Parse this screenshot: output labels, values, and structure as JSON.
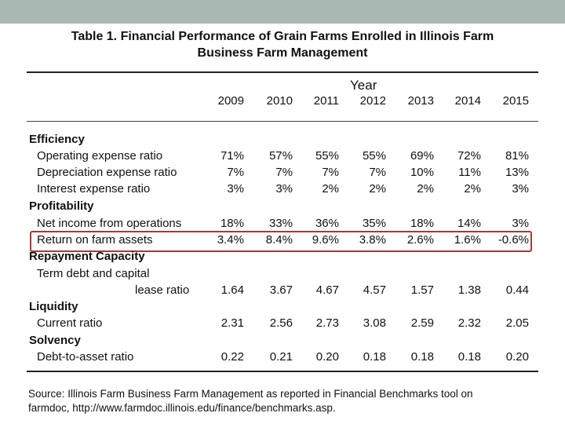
{
  "title": {
    "line1": "Table 1.  Financial Performance of Grain Farms Enrolled in Illinois Farm",
    "line2": "Business Farm Management"
  },
  "header": {
    "year_label": "Year",
    "years": [
      "2009",
      "2010",
      "2011",
      "2012",
      "2013",
      "2014",
      "2015"
    ]
  },
  "sections": {
    "efficiency": "Efficiency",
    "profitability": "Profitability",
    "repayment": "Repayment Capacity",
    "liquidity": "Liquidity",
    "solvency": "Solvency"
  },
  "rows": {
    "operating_expense": {
      "label": "Operating expense ratio",
      "values": [
        "71%",
        "57%",
        "55%",
        "55%",
        "69%",
        "72%",
        "81%"
      ]
    },
    "depreciation_expense": {
      "label": "Depreciation expense ratio",
      "values": [
        "7%",
        "7%",
        "7%",
        "7%",
        "10%",
        "11%",
        "13%"
      ]
    },
    "interest_expense": {
      "label": "Interest expense ratio",
      "values": [
        "3%",
        "3%",
        "2%",
        "2%",
        "2%",
        "2%",
        "3%"
      ]
    },
    "net_income": {
      "label": "Net income from operations",
      "values": [
        "18%",
        "33%",
        "36%",
        "35%",
        "18%",
        "14%",
        "3%"
      ]
    },
    "return_on_assets": {
      "label": "Return on farm assets",
      "values": [
        "3.4%",
        "8.4%",
        "9.6%",
        "3.8%",
        "2.6%",
        "1.6%",
        "-0.6%"
      ]
    },
    "term_debt": {
      "label_line1": "Term debt and capital",
      "label_line2": "lease ratio",
      "values": [
        "1.64",
        "3.67",
        "4.67",
        "4.57",
        "1.57",
        "1.38",
        "0.44"
      ]
    },
    "current_ratio": {
      "label": "Current ratio",
      "values": [
        "2.31",
        "2.56",
        "2.73",
        "3.08",
        "2.59",
        "2.32",
        "2.05"
      ]
    },
    "debt_to_asset": {
      "label": "Debt-to-asset ratio",
      "values": [
        "0.22",
        "0.21",
        "0.20",
        "0.18",
        "0.18",
        "0.18",
        "0.20"
      ]
    }
  },
  "source": {
    "line1": "Source:  Illinois Farm Business Farm Management as reported in Financial Benchmarks tool on",
    "line2": "farmdoc, http://www.farmdoc.illinois.edu/finance/benchmarks.asp."
  },
  "colors": {
    "top_bar": "#a9b8b2",
    "highlight_border": "#a23b36"
  }
}
